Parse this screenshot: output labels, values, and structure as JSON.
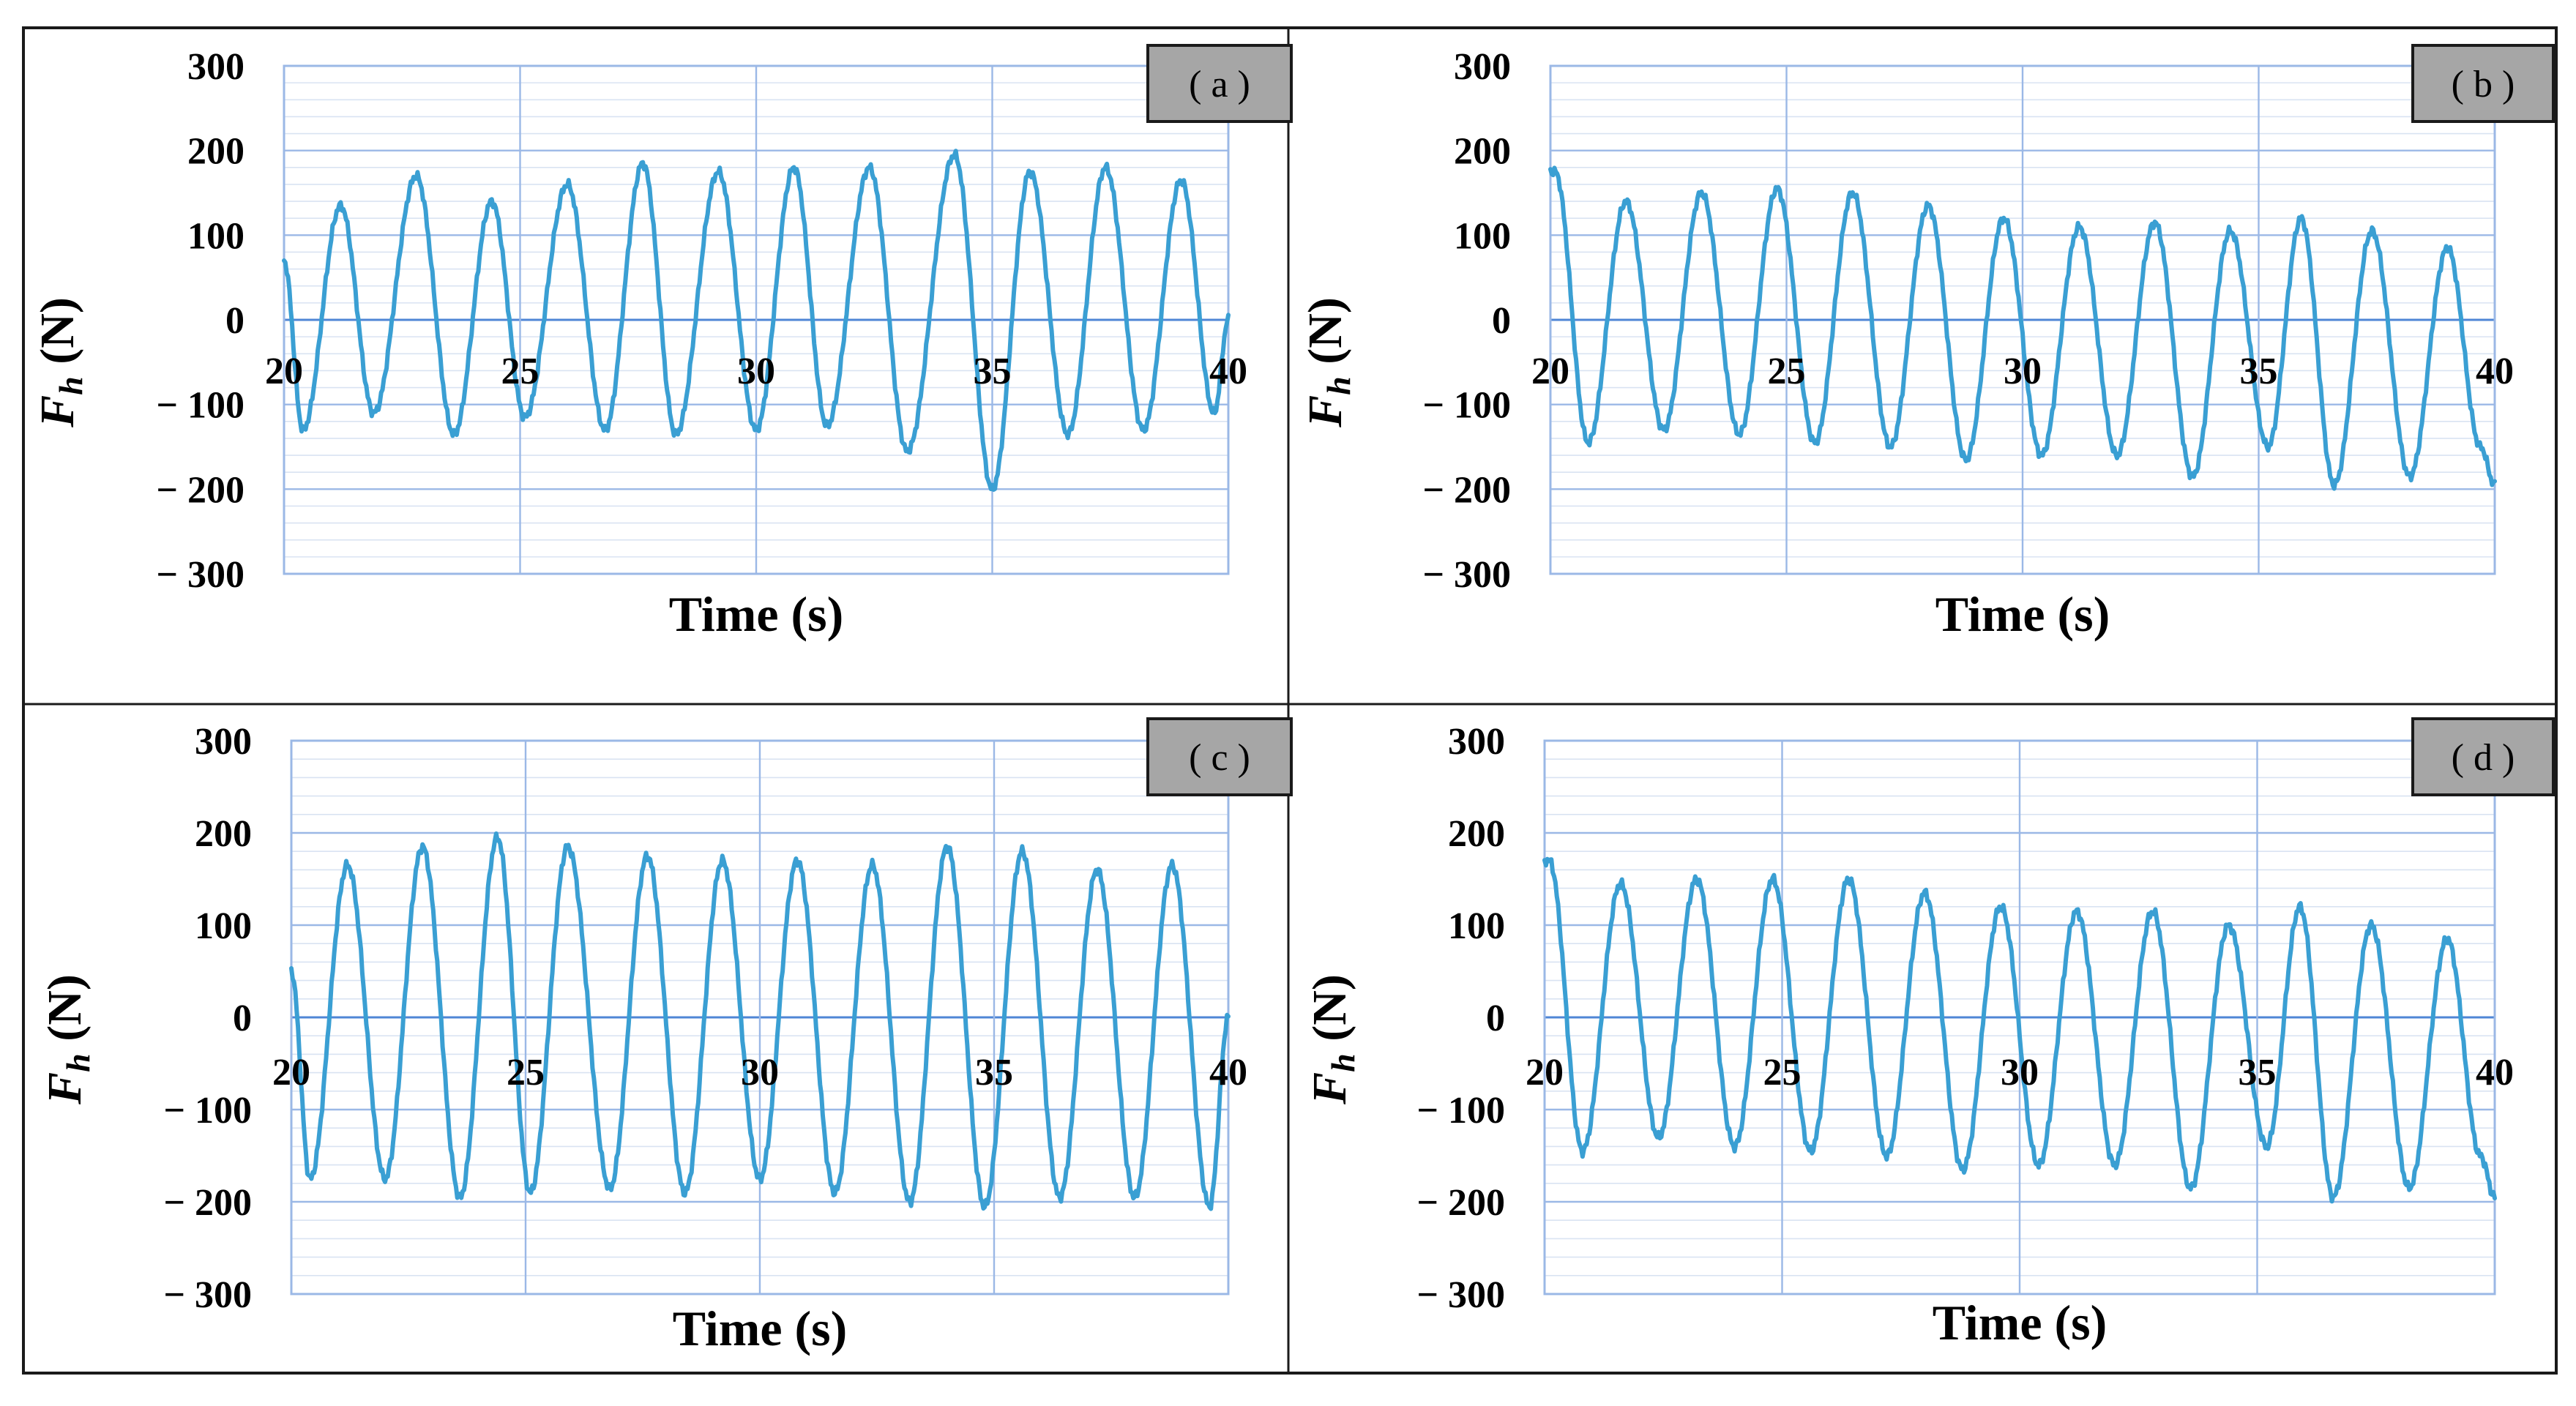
{
  "chart_data": [
    {
      "type": "line",
      "panel_label": "( a )",
      "xlabel": "Time (s)",
      "ylabel_main": "F",
      "ylabel_sub": "h",
      "ylabel_unit": " (N)",
      "xlim": [
        20,
        40
      ],
      "ylim": [
        -300,
        300
      ],
      "xticks": [
        "20",
        "25",
        "30",
        "35",
        "40"
      ],
      "yticks": [
        "300",
        "200",
        "100",
        "0",
        "− 100",
        "− 200",
        "− 300"
      ],
      "grid": true,
      "series": [
        {
          "color": "#3a9fd3",
          "x": [
            20.0,
            20.4,
            21.2,
            21.9,
            22.8,
            23.6,
            24.4,
            25.1,
            26.0,
            26.8,
            27.6,
            28.3,
            29.2,
            30.0,
            30.8,
            31.5,
            32.4,
            33.2,
            34.2,
            35.0,
            35.8,
            36.6,
            37.4,
            38.2,
            39.0,
            39.7,
            40.0
          ],
          "y": [
            70,
            -130,
            135,
            -110,
            170,
            -135,
            140,
            -115,
            160,
            -130,
            185,
            -135,
            175,
            -130,
            180,
            -125,
            180,
            -155,
            195,
            -200,
            175,
            -135,
            180,
            -130,
            165,
            -110,
            0
          ]
        }
      ]
    },
    {
      "type": "line",
      "panel_label": "( b )",
      "xlabel": "Time (s)",
      "ylabel_main": "F",
      "ylabel_sub": "h",
      "ylabel_unit": " (N)",
      "xlim": [
        20,
        40
      ],
      "ylim": [
        -300,
        300
      ],
      "xticks": [
        "20",
        "25",
        "30",
        "35",
        "40"
      ],
      "yticks": [
        "300",
        "200",
        "100",
        "0",
        "− 100",
        "− 200",
        "− 300"
      ],
      "grid": true,
      "series": [
        {
          "color": "#3a9fd3",
          "x": [
            20.1,
            20.8,
            21.6,
            22.4,
            23.2,
            24.0,
            24.8,
            25.6,
            26.4,
            27.2,
            28.0,
            28.8,
            29.6,
            30.4,
            31.2,
            32.0,
            32.8,
            33.6,
            34.4,
            35.2,
            35.9,
            36.6,
            37.4,
            38.2,
            39.0,
            39.7,
            40.0
          ],
          "y": [
            175,
            -145,
            140,
            -130,
            150,
            -135,
            155,
            -145,
            150,
            -150,
            135,
            -165,
            120,
            -160,
            110,
            -160,
            115,
            -185,
            105,
            -150,
            120,
            -195,
            105,
            -185,
            85,
            -150,
            -195
          ]
        }
      ]
    },
    {
      "type": "line",
      "panel_label": "( c )",
      "xlabel": "Time (s)",
      "ylabel_main": "F",
      "ylabel_sub": "h",
      "ylabel_unit": " (N)",
      "xlim": [
        20,
        40
      ],
      "ylim": [
        -300,
        300
      ],
      "xticks": [
        "20",
        "25",
        "30",
        "35",
        "40"
      ],
      "yticks": [
        "300",
        "200",
        "100",
        "0",
        "− 100",
        "− 200",
        "− 300"
      ],
      "grid": true,
      "series": [
        {
          "color": "#3a9fd3",
          "x": [
            20.0,
            20.4,
            21.2,
            22.0,
            22.8,
            23.6,
            24.4,
            25.1,
            25.9,
            26.8,
            27.6,
            28.4,
            29.2,
            30.0,
            30.8,
            31.6,
            32.4,
            33.2,
            34.0,
            34.8,
            35.6,
            36.4,
            37.2,
            38.0,
            38.8,
            39.6,
            40.0
          ],
          "y": [
            50,
            -175,
            165,
            -175,
            185,
            -195,
            195,
            -190,
            185,
            -185,
            175,
            -190,
            170,
            -175,
            170,
            -190,
            165,
            -200,
            185,
            -205,
            180,
            -195,
            160,
            -195,
            165,
            -205,
            0
          ]
        }
      ]
    },
    {
      "type": "line",
      "panel_label": "( d )",
      "xlabel": "Time (s)",
      "ylabel_main": "F",
      "ylabel_sub": "h",
      "ylabel_unit": " (N)",
      "xlim": [
        20,
        40
      ],
      "ylim": [
        -300,
        300
      ],
      "xticks": [
        "20",
        "25",
        "30",
        "35",
        "40"
      ],
      "yticks": [
        "300",
        "200",
        "100",
        "0",
        "− 100",
        "− 200",
        "− 300"
      ],
      "grid": true,
      "series": [
        {
          "color": "#3a9fd3",
          "x": [
            20.1,
            20.8,
            21.6,
            22.4,
            23.2,
            24.0,
            24.8,
            25.6,
            26.4,
            27.2,
            28.0,
            28.8,
            29.6,
            30.4,
            31.2,
            32.0,
            32.8,
            33.6,
            34.4,
            35.2,
            35.9,
            36.6,
            37.4,
            38.2,
            39.0,
            39.7,
            40.0
          ],
          "y": [
            170,
            -145,
            145,
            -130,
            150,
            -140,
            150,
            -145,
            150,
            -150,
            135,
            -165,
            120,
            -160,
            115,
            -160,
            115,
            -185,
            100,
            -140,
            120,
            -195,
            100,
            -185,
            85,
            -150,
            -195
          ]
        }
      ]
    }
  ]
}
